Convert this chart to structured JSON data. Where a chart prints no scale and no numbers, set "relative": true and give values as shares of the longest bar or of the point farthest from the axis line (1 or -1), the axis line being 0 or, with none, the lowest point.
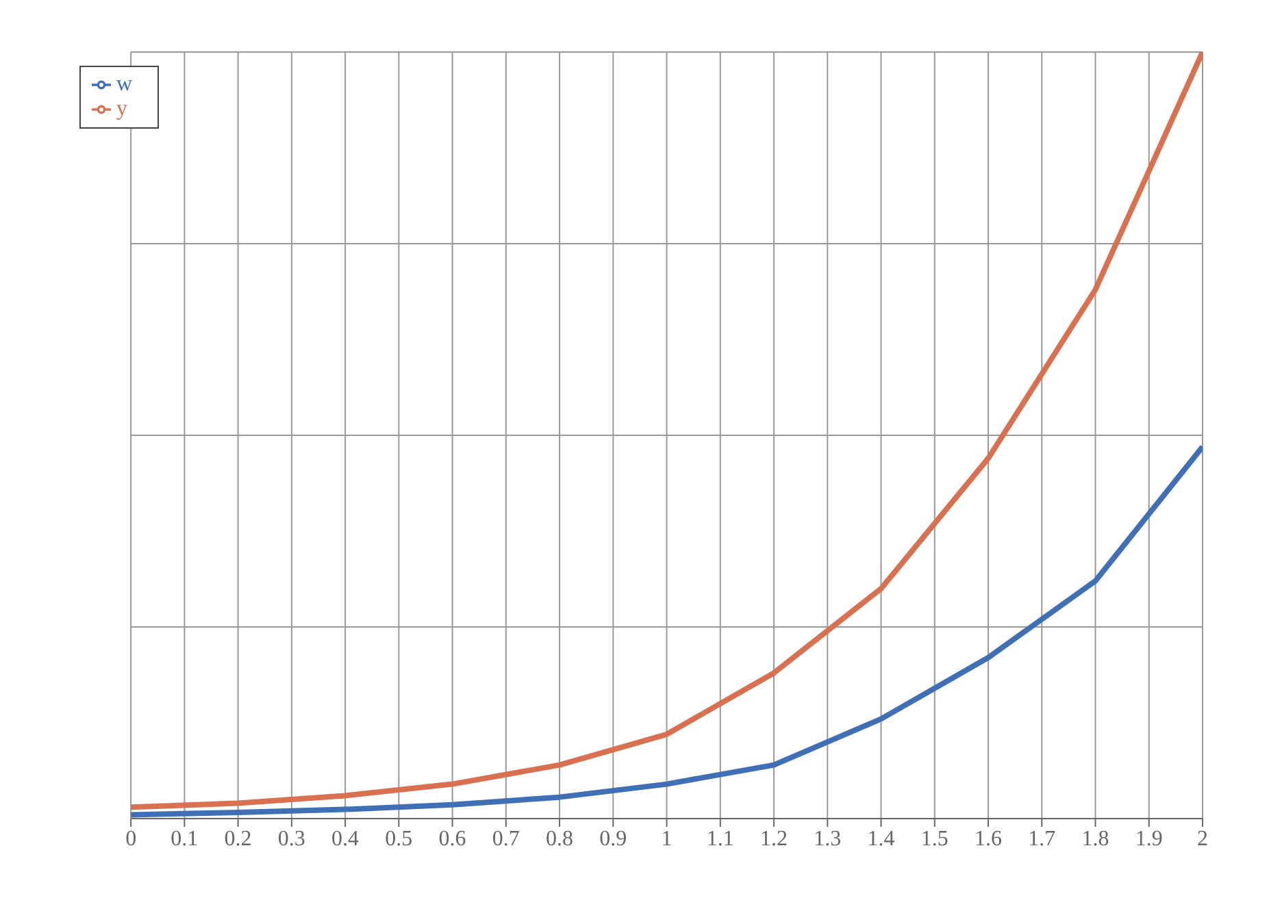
{
  "chart_data": {
    "type": "line",
    "relative": true,
    "x": [
      0,
      0.2,
      0.4,
      0.6,
      0.8,
      1,
      1.2,
      1.4,
      1.6,
      1.8,
      2
    ],
    "xlim": [
      0,
      2
    ],
    "xticks": [
      0,
      0.1,
      0.2,
      0.3,
      0.4,
      0.5,
      0.6,
      0.7,
      0.8,
      0.9,
      1,
      1.1,
      1.2,
      1.3,
      1.4,
      1.5,
      1.6,
      1.7,
      1.8,
      1.9,
      2
    ],
    "series": [
      {
        "name": "w",
        "color": "#3f6fb5",
        "values": [
          0.005,
          0.008,
          0.012,
          0.018,
          0.028,
          0.045,
          0.07,
          0.13,
          0.21,
          0.31,
          0.485
        ]
      },
      {
        "name": "y",
        "color": "#d9704f",
        "values": [
          0.015,
          0.02,
          0.03,
          0.045,
          0.07,
          0.11,
          0.19,
          0.3,
          0.47,
          0.69,
          1
        ]
      }
    ],
    "grid": true,
    "legend": "top left",
    "marker": "none",
    "line_style": "solid"
  }
}
